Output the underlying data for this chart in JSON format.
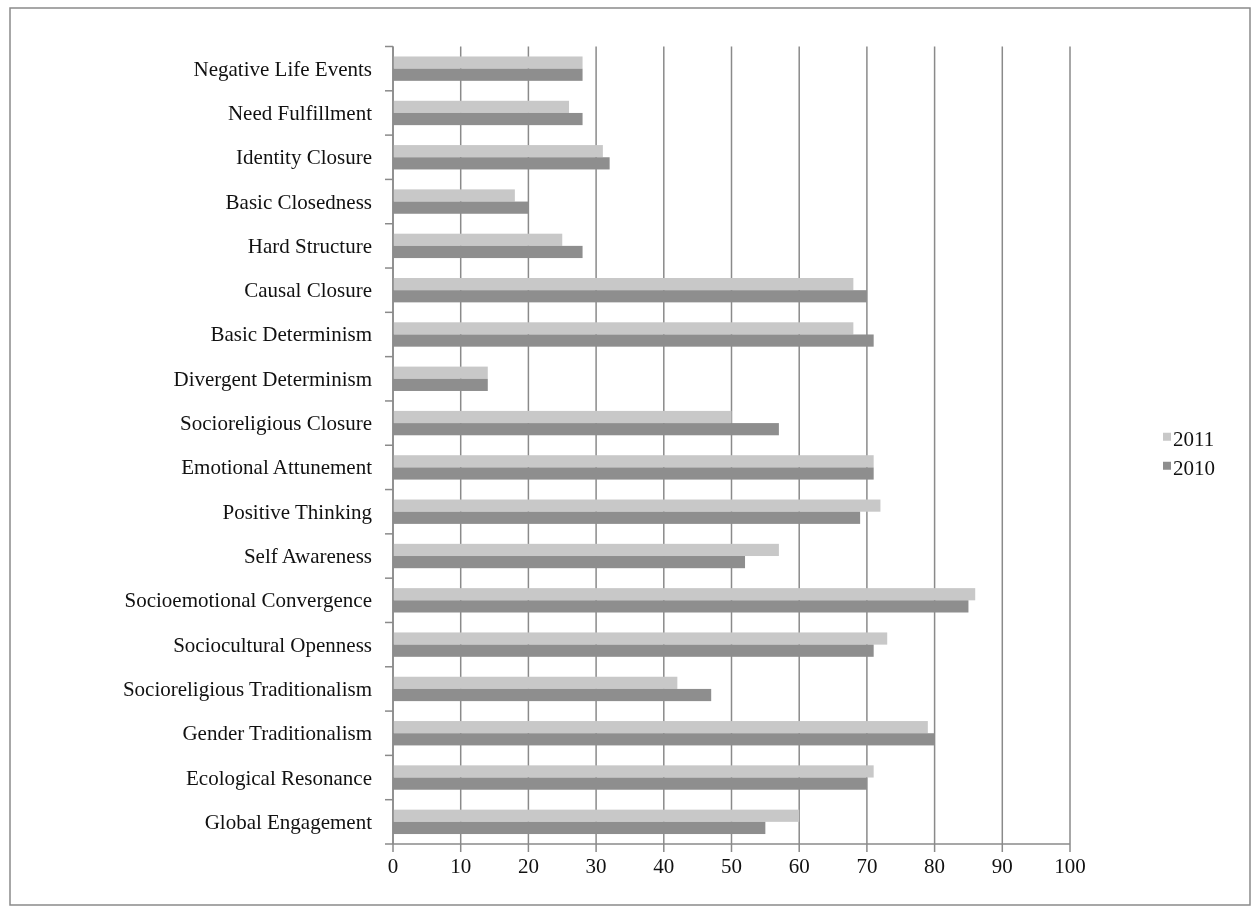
{
  "chart_data": {
    "type": "bar",
    "orientation": "horizontal",
    "categories": [
      "Negative Life Events",
      "Need Fulfillment",
      "Identity Closure",
      "Basic Closedness",
      "Hard Structure",
      "Causal Closure",
      "Basic Determinism",
      "Divergent Determinism",
      "Socioreligious Closure",
      "Emotional Attunement",
      "Positive Thinking",
      "Self Awareness",
      "Socioemotional Convergence",
      "Sociocultural Openness",
      "Socioreligious Traditionalism",
      "Gender Traditionalism",
      "Ecological Resonance",
      "Global Engagement"
    ],
    "series": [
      {
        "name": "2011",
        "color": "#c8c8c8",
        "values": [
          28,
          26,
          31,
          18,
          25,
          68,
          68,
          14,
          50,
          71,
          72,
          57,
          86,
          73,
          42,
          79,
          71,
          60
        ]
      },
      {
        "name": "2010",
        "color": "#8e8e8e",
        "values": [
          28,
          28,
          32,
          20,
          28,
          70,
          71,
          14,
          57,
          71,
          69,
          52,
          85,
          71,
          47,
          80,
          70,
          55
        ]
      }
    ],
    "xlim": [
      0,
      100
    ],
    "xticks": [
      0,
      10,
      20,
      30,
      40,
      50,
      60,
      70,
      80,
      90,
      100
    ],
    "grid": "x",
    "legend": "right"
  }
}
